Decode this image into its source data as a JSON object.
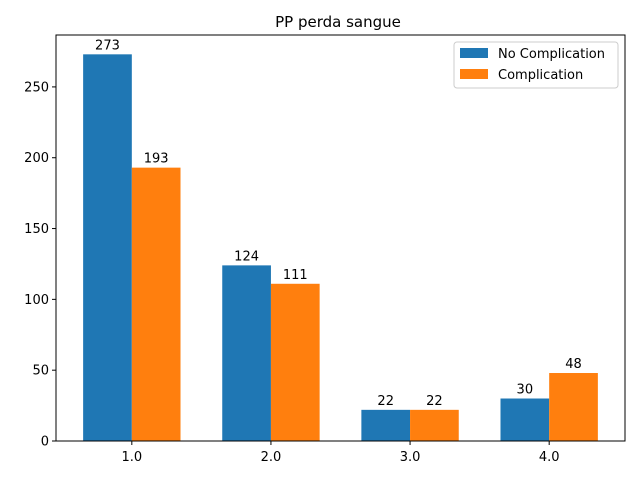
{
  "chart_data": {
    "type": "bar",
    "title": "PP perda sangue",
    "xlabel": "",
    "ylabel": "",
    "categories": [
      "1.0",
      "2.0",
      "3.0",
      "4.0"
    ],
    "series": [
      {
        "name": "No Complication",
        "values": [
          273,
          124,
          22,
          30
        ],
        "color": "#1f77b4"
      },
      {
        "name": "Complication",
        "values": [
          193,
          111,
          22,
          48
        ],
        "color": "#ff7f0e"
      }
    ],
    "ylim": [
      0,
      286.65
    ],
    "yticks": [
      0,
      50,
      100,
      150,
      200,
      250
    ],
    "grid": false,
    "legend_position": "top-right"
  }
}
